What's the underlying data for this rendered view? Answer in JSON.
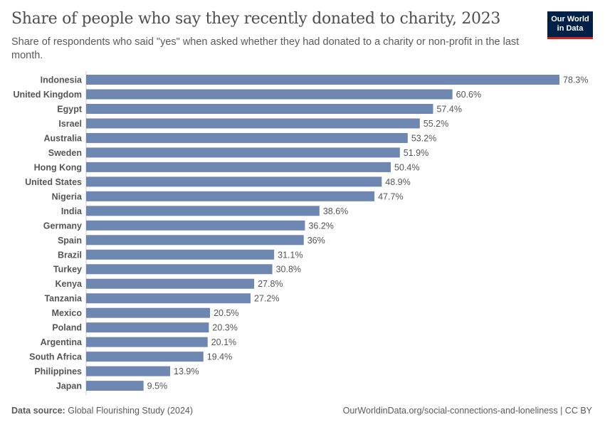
{
  "header": {
    "title": "Share of people who say they recently donated to charity, 2023",
    "subtitle": "Share of respondents who said \"yes\" when asked whether they had donated to a charity or non-profit in the last month.",
    "logo_line1": "Our World",
    "logo_line2": "in Data"
  },
  "footer": {
    "source_label": "Data source:",
    "source": "Global Flourishing Study (2024)",
    "link": "OurWorldinData.org/social-connections-and-loneliness | CC BY"
  },
  "chart_data": {
    "type": "bar",
    "orientation": "horizontal",
    "categories": [
      "Indonesia",
      "United Kingdom",
      "Egypt",
      "Israel",
      "Australia",
      "Sweden",
      "Hong Kong",
      "United States",
      "Nigeria",
      "India",
      "Germany",
      "Spain",
      "Brazil",
      "Turkey",
      "Kenya",
      "Tanzania",
      "Mexico",
      "Poland",
      "Argentina",
      "South Africa",
      "Philippines",
      "Japan"
    ],
    "values": [
      78.3,
      60.6,
      57.4,
      55.2,
      53.2,
      51.9,
      50.4,
      48.9,
      47.7,
      38.6,
      36.2,
      36,
      31.1,
      30.8,
      27.8,
      27.2,
      20.5,
      20.3,
      20.1,
      19.4,
      13.9,
      9.5
    ],
    "labels": [
      "78.3%",
      "60.6%",
      "57.4%",
      "55.2%",
      "53.2%",
      "51.9%",
      "50.4%",
      "48.9%",
      "47.7%",
      "38.6%",
      "36.2%",
      "36%",
      "31.1%",
      "30.8%",
      "27.8%",
      "27.2%",
      "20.5%",
      "20.3%",
      "20.1%",
      "19.4%",
      "13.9%",
      "9.5%"
    ],
    "unit": "%",
    "xlim": [
      0,
      78.3
    ],
    "grid": false,
    "bar_color": "#6d87b0"
  }
}
